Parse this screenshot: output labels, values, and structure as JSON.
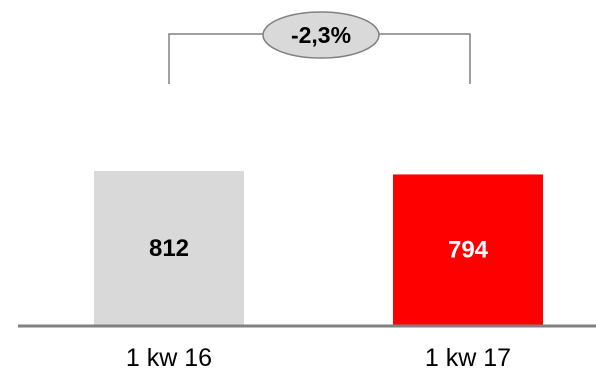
{
  "chart_data": {
    "type": "bar",
    "categories": [
      "1 kw 16",
      "1 kw 17"
    ],
    "values": [
      812,
      794
    ],
    "value_labels": [
      "812",
      "794"
    ],
    "bar_colors": [
      "#d9d9d9",
      "#ff0000"
    ],
    "value_label_colors": [
      "#000000",
      "#ffffff"
    ],
    "change_label": "-2,3%",
    "change_bubble_color": "#d9d9d9",
    "axis_color": "#808080",
    "connector_color": "#808080",
    "grid": false,
    "legend": "none"
  }
}
